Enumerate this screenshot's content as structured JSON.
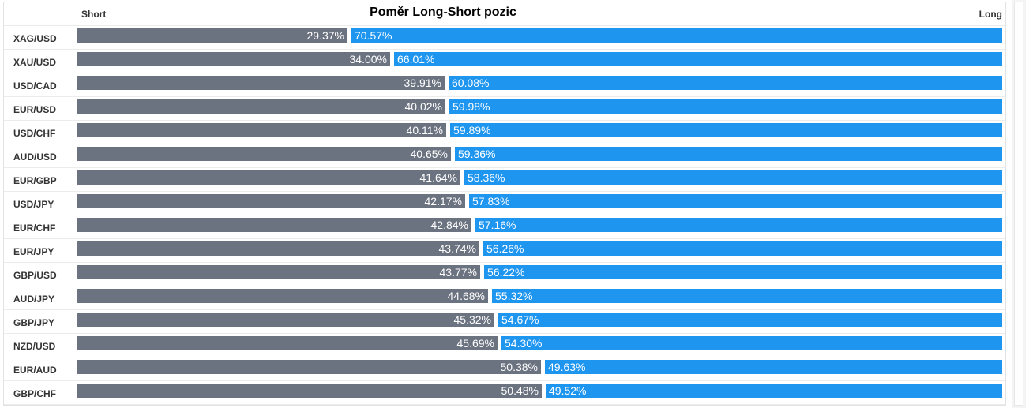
{
  "chart_data": {
    "type": "bar",
    "title": "Poměr Long-Short pozic",
    "left_label": "Short",
    "right_label": "Long",
    "colors": {
      "short": "#6b7280",
      "long": "#1e95ef"
    },
    "categories": [
      "XAG/USD",
      "XAU/USD",
      "USD/CAD",
      "EUR/USD",
      "USD/CHF",
      "AUD/USD",
      "EUR/GBP",
      "USD/JPY",
      "EUR/CHF",
      "EUR/JPY",
      "GBP/USD",
      "AUD/JPY",
      "GBP/JPY",
      "NZD/USD",
      "EUR/AUD",
      "GBP/CHF"
    ],
    "series": [
      {
        "name": "Short",
        "values": [
          29.37,
          34.0,
          39.91,
          40.02,
          40.11,
          40.65,
          41.64,
          42.17,
          42.84,
          43.74,
          43.77,
          44.68,
          45.32,
          45.69,
          50.38,
          50.48
        ],
        "labels": [
          "29.37%",
          "34.00%",
          "39.91%",
          "40.02%",
          "40.11%",
          "40.65%",
          "41.64%",
          "42.17%",
          "42.84%",
          "43.74%",
          "43.77%",
          "44.68%",
          "45.32%",
          "45.69%",
          "50.38%",
          "50.48%"
        ]
      },
      {
        "name": "Long",
        "values": [
          70.57,
          66.01,
          60.08,
          59.98,
          59.89,
          59.36,
          58.36,
          57.83,
          57.16,
          56.26,
          56.22,
          55.32,
          54.67,
          54.3,
          49.63,
          49.52
        ],
        "labels": [
          "70.57%",
          "66.01%",
          "60.08%",
          "59.98%",
          "59.89%",
          "59.36%",
          "58.36%",
          "57.83%",
          "57.16%",
          "56.26%",
          "56.22%",
          "55.32%",
          "54.67%",
          "54.30%",
          "49.63%",
          "49.52%"
        ]
      }
    ]
  }
}
